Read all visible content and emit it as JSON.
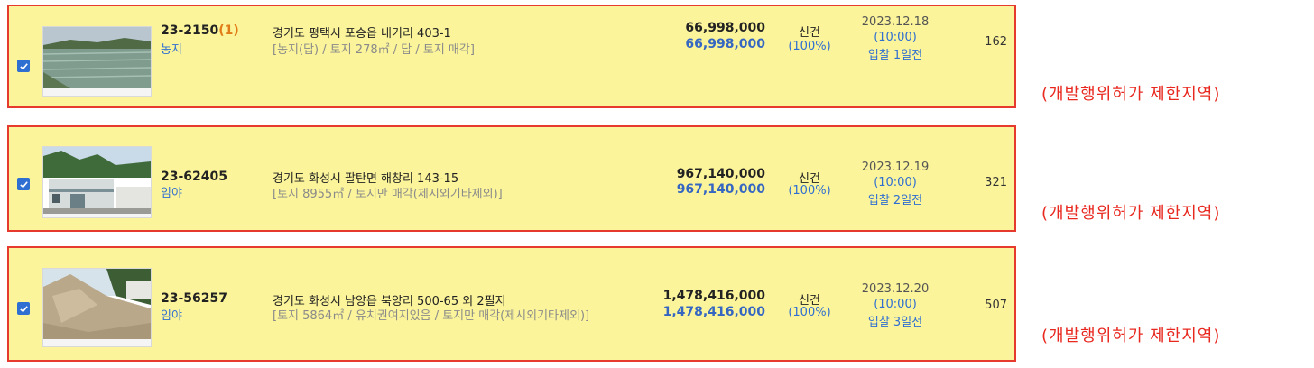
{
  "colors": {
    "row_bg": "#fbf49b",
    "row_border": "#e63a2e",
    "accent_blue": "#2f6fd1",
    "note_red": "#e8281f",
    "sub_orange": "#e07b17"
  },
  "items": [
    {
      "case_no": "23-2150",
      "case_sub": "(1)",
      "kind": "농지",
      "address": "경기도 평택시 포승읍 내기리 403-1",
      "detail": "[농지(답) / 토지 278㎡ / 답 / 토지 매각]",
      "appraisal": "66,998,000",
      "min_price": "66,998,000",
      "status": "신건",
      "ratio": "(100%)",
      "date": "2023.12.18",
      "time": "(10:00)",
      "dday": "입찰 1일전",
      "views": "162",
      "checked": true,
      "photo": "paddy-field-photo"
    },
    {
      "case_no": "23-62405",
      "case_sub": "",
      "kind": "임야",
      "address": "경기도 화성시 팔탄면 해창리 143-15",
      "detail": "[토지 8955㎡ / 토지만 매각(제시외기타제외)]",
      "appraisal": "967,140,000",
      "min_price": "967,140,000",
      "status": "신건",
      "ratio": "(100%)",
      "date": "2023.12.19",
      "time": "(10:00)",
      "dday": "입찰 2일전",
      "views": "321",
      "checked": true,
      "photo": "factory-building-photo"
    },
    {
      "case_no": "23-56257",
      "case_sub": "",
      "kind": "임야",
      "address": "경기도 화성시 남양읍 북양리 500-65 외 2필지",
      "detail": "[토지 5864㎡ / 유치권여지있음 / 토지만 매각(제시외기타제외)]",
      "appraisal": "1,478,416,000",
      "min_price": "1,478,416,000",
      "status": "신건",
      "ratio": "(100%)",
      "date": "2023.12.20",
      "time": "(10:00)",
      "dday": "입찰 3일전",
      "views": "507",
      "checked": true,
      "photo": "dirt-slope-photo"
    }
  ],
  "notes": [
    "(개발행위허가 제한지역)",
    "(개발행위허가 제한지역)",
    "(개발행위허가 제한지역)"
  ]
}
